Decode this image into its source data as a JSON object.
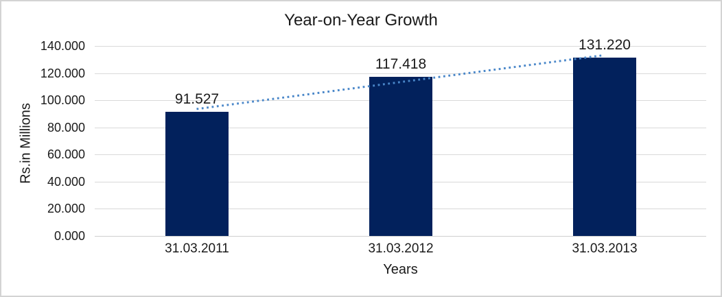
{
  "chart_data": {
    "type": "bar",
    "title": "Year-on-Year Growth",
    "xlabel": "Years",
    "ylabel": "Rs.in Millions",
    "categories": [
      "31.03.2011",
      "31.03.2012",
      "31.03.2013"
    ],
    "values": [
      91.527,
      117.418,
      131.22
    ],
    "data_labels": [
      "91.527",
      "117.418",
      "131.220"
    ],
    "ylim": [
      0,
      140
    ],
    "ytick_values": [
      0,
      20,
      40,
      60,
      80,
      100,
      120,
      140
    ],
    "ytick_labels": [
      "0.000",
      "20.000",
      "40.000",
      "60.000",
      "80.000",
      "100.000",
      "120.000",
      "140.000"
    ],
    "grid": true,
    "legend": "none",
    "trendline": {
      "type": "linear",
      "style": "dotted"
    },
    "colors": {
      "bar": "#02215C",
      "trendline": "#4A87C9",
      "gridline": "#D9D9D9",
      "text": "#1A1A1A",
      "frame_border": "#D3D3D3",
      "background": "#FFFFFF"
    }
  }
}
